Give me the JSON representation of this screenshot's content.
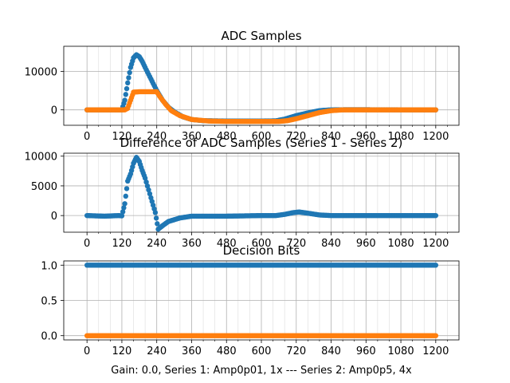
{
  "figure": {
    "xlabel": "Gain: 0.0, Series 1: Amp0p01, 1x --- Series 2: Amp0p5, 4x"
  },
  "colors": {
    "series1": "#1f77b4",
    "series2": "#ff7f0e",
    "grid": "#b0b0b0"
  },
  "chart_data": [
    {
      "type": "scatter",
      "title": "ADC Samples",
      "xlim": [
        -80,
        1280
      ],
      "ylim": [
        -4000,
        16500
      ],
      "grid": true,
      "xticks": [
        0,
        120,
        240,
        360,
        480,
        600,
        720,
        840,
        960,
        1080,
        1200
      ],
      "xtick_labels": [
        "0",
        "120",
        "240",
        "360",
        "480",
        "600",
        "720",
        "840",
        "960",
        "1080",
        "1200"
      ],
      "yticks": [
        0,
        10000
      ],
      "ytick_labels": [
        "0",
        "10000"
      ],
      "series": [
        {
          "color": "series1",
          "points": [
            [
              0,
              0
            ],
            [
              100,
              0
            ],
            [
              120,
              0
            ],
            [
              130,
              2500
            ],
            [
              140,
              7000
            ],
            [
              150,
              11000
            ],
            [
              160,
              13500
            ],
            [
              170,
              14300
            ],
            [
              180,
              13800
            ],
            [
              190,
              12600
            ],
            [
              200,
              11000
            ],
            [
              220,
              8000
            ],
            [
              240,
              5000
            ],
            [
              260,
              2500
            ],
            [
              280,
              700
            ],
            [
              300,
              -500
            ],
            [
              330,
              -1800
            ],
            [
              360,
              -2500
            ],
            [
              400,
              -2800
            ],
            [
              480,
              -2900
            ],
            [
              600,
              -2900
            ],
            [
              650,
              -2850
            ],
            [
              680,
              -2400
            ],
            [
              720,
              -1500
            ],
            [
              760,
              -800
            ],
            [
              800,
              -200
            ],
            [
              840,
              0
            ],
            [
              900,
              50
            ],
            [
              1000,
              30
            ],
            [
              1100,
              0
            ],
            [
              1200,
              0
            ]
          ]
        },
        {
          "color": "series2",
          "points": [
            [
              0,
              0
            ],
            [
              130,
              0
            ],
            [
              140,
              400
            ],
            [
              150,
              2500
            ],
            [
              160,
              4600
            ],
            [
              180,
              4700
            ],
            [
              200,
              4700
            ],
            [
              240,
              4700
            ],
            [
              250,
              3500
            ],
            [
              270,
              1500
            ],
            [
              290,
              -200
            ],
            [
              320,
              -1500
            ],
            [
              360,
              -2500
            ],
            [
              420,
              -2900
            ],
            [
              480,
              -3000
            ],
            [
              600,
              -3000
            ],
            [
              660,
              -3000
            ],
            [
              690,
              -2800
            ],
            [
              720,
              -2300
            ],
            [
              760,
              -1500
            ],
            [
              800,
              -700
            ],
            [
              840,
              -200
            ],
            [
              880,
              0
            ],
            [
              960,
              0
            ],
            [
              1080,
              0
            ],
            [
              1200,
              0
            ]
          ]
        }
      ]
    },
    {
      "type": "scatter",
      "title": "Difference of ADC Samples (Series 1 - Series 2)",
      "xlim": [
        -80,
        1280
      ],
      "ylim": [
        -2800,
        10500
      ],
      "grid": true,
      "xticks": [
        0,
        120,
        240,
        360,
        480,
        600,
        720,
        840,
        960,
        1080,
        1200
      ],
      "xtick_labels": [
        "0",
        "120",
        "240",
        "360",
        "480",
        "600",
        "720",
        "840",
        "960",
        "1080",
        "1200"
      ],
      "yticks": [
        0,
        5000,
        10000
      ],
      "ytick_labels": [
        "0",
        "5000",
        "10000"
      ],
      "series": [
        {
          "color": "series1",
          "points": [
            [
              0,
              0
            ],
            [
              60,
              -100
            ],
            [
              110,
              0
            ],
            [
              120,
              -50
            ],
            [
              130,
              2000
            ],
            [
              140,
              5800
            ],
            [
              150,
              7000
            ],
            [
              160,
              8800
            ],
            [
              170,
              9800
            ],
            [
              180,
              9100
            ],
            [
              190,
              7600
            ],
            [
              200,
              6300
            ],
            [
              220,
              3000
            ],
            [
              235,
              500
            ],
            [
              245,
              -2300
            ],
            [
              260,
              -1700
            ],
            [
              280,
              -1000
            ],
            [
              320,
              -400
            ],
            [
              360,
              -100
            ],
            [
              480,
              -100
            ],
            [
              600,
              0
            ],
            [
              650,
              0
            ],
            [
              680,
              200
            ],
            [
              710,
              500
            ],
            [
              730,
              600
            ],
            [
              760,
              400
            ],
            [
              800,
              100
            ],
            [
              840,
              0
            ],
            [
              960,
              0
            ],
            [
              1080,
              0
            ],
            [
              1200,
              0
            ]
          ]
        }
      ]
    },
    {
      "type": "scatter",
      "title": "Decision Bits",
      "xlim": [
        -80,
        1280
      ],
      "ylim": [
        -0.06,
        1.06
      ],
      "grid": true,
      "xticks": [
        0,
        120,
        240,
        360,
        480,
        600,
        720,
        840,
        960,
        1080,
        1200
      ],
      "xtick_labels": [
        "0",
        "120",
        "240",
        "360",
        "480",
        "600",
        "720",
        "840",
        "960",
        "1080",
        "1200"
      ],
      "yticks": [
        0,
        0.5,
        1
      ],
      "ytick_labels": [
        "0.0",
        "0.5",
        "1.0"
      ],
      "series": [
        {
          "color": "series1",
          "points": [
            [
              0,
              1
            ],
            [
              1200,
              1
            ]
          ]
        },
        {
          "color": "series2",
          "points": [
            [
              0,
              0
            ],
            [
              1200,
              0
            ]
          ]
        }
      ]
    }
  ]
}
